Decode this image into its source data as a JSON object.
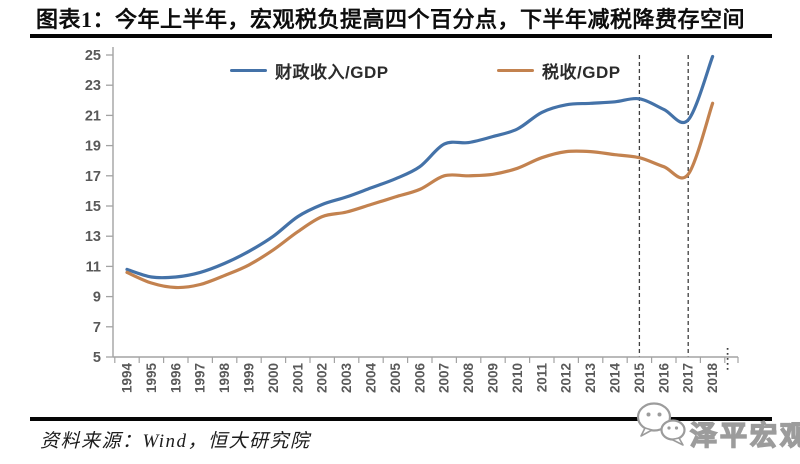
{
  "title": "图表1：今年上半年，宏观税负提高四个百分点，下半年减税降费存空间",
  "source_note": "资料来源：Wind，恒大研究院",
  "watermark": {
    "text": "泽平宏观",
    "icon": "wechat-icon"
  },
  "chart_data": {
    "type": "line",
    "title": "图表1：今年上半年，宏观税负提高四个百分点，下半年减税降费存空间",
    "x": [
      1994,
      1995,
      1996,
      1997,
      1998,
      1999,
      2000,
      2001,
      2002,
      2003,
      2004,
      2005,
      2006,
      2007,
      2008,
      2009,
      2010,
      2011,
      2012,
      2013,
      2014,
      2015,
      2016,
      2017,
      2018
    ],
    "series": [
      {
        "name": "财政收入/GDP",
        "color": "#4472a8",
        "values": [
          10.8,
          10.3,
          10.3,
          10.6,
          11.2,
          12.0,
          13.0,
          14.3,
          15.1,
          15.6,
          16.2,
          16.8,
          17.6,
          19.1,
          19.2,
          19.6,
          20.1,
          21.2,
          21.7,
          21.8,
          21.9,
          22.1,
          21.4,
          20.7,
          24.9
        ]
      },
      {
        "name": "税收/GDP",
        "color": "#c3824f",
        "values": [
          10.6,
          9.9,
          9.6,
          9.8,
          10.4,
          11.1,
          12.1,
          13.3,
          14.3,
          14.6,
          15.1,
          15.6,
          16.1,
          17.0,
          17.0,
          17.1,
          17.5,
          18.2,
          18.6,
          18.6,
          18.4,
          18.2,
          17.6,
          17.1,
          21.8
        ]
      }
    ],
    "ylim": [
      5,
      25
    ],
    "yticks": [
      25,
      23,
      21,
      19,
      17,
      15,
      13,
      11,
      9,
      7,
      5
    ],
    "grid": false,
    "legend_position": "top",
    "vlines": [
      {
        "x": 2015,
        "style": "dashed"
      },
      {
        "x": 2017,
        "style": "dashed"
      }
    ],
    "x_axis_continuation_dots_after": 2018,
    "axis_color": "#a3a3a3",
    "tick_label_color": "#595959",
    "vline_color": "#3f3f3f"
  }
}
